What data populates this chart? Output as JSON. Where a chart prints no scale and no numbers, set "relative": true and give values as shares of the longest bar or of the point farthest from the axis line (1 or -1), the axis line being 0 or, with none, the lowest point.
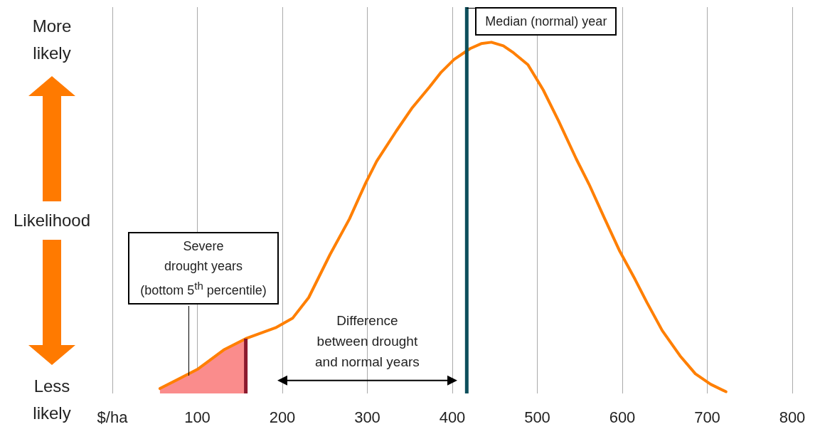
{
  "chart_data": {
    "type": "line",
    "relative": true,
    "ylabel": "Likelihood",
    "xlim": [
      0,
      800
    ],
    "xticks": [
      {
        "value": 0,
        "label": "$/ha"
      },
      100,
      200,
      300,
      400,
      500,
      600,
      700,
      800
    ],
    "grid": "x",
    "tick_labels": "x",
    "marker": "none",
    "annotations": [
      "More likely",
      "Less likely",
      "Severe\ndrought years\n(bottom 5$^{th}$ percentile)",
      {
        "text": "Difference\nbetween drought\nand normal years",
        "x": 300,
        "y": 0.037
      }
    ],
    "ref_lines": [
      {
        "axis": "x",
        "value": 157,
        "color": "#8b1a2e"
      },
      {
        "axis": "x",
        "value": 417,
        "label": "Median (normal) year",
        "color": "#0d4f5c"
      }
    ],
    "series": [
      {
        "type": "area",
        "color": "#fa8c8c",
        "x": [
          56,
          89,
          101,
          131,
          157
        ],
        "values": [
          0.014,
          0.051,
          0.07,
          0.124,
          0.156
        ]
      },
      {
        "color": "#ff7f00",
        "x": [
          56,
          86,
          101,
          131,
          157,
          192,
          212,
          231,
          256,
          279,
          298,
          311,
          334,
          353,
          373,
          387,
          402,
          421,
          434,
          446,
          460,
          472,
          489,
          507,
          525,
          546,
          561,
          579,
          597,
          615,
          629,
          647,
          668,
          686,
          704,
          722
        ],
        "values": [
          0.014,
          0.051,
          0.07,
          0.124,
          0.156,
          0.187,
          0.214,
          0.273,
          0.395,
          0.497,
          0.599,
          0.661,
          0.747,
          0.814,
          0.872,
          0.915,
          0.951,
          0.982,
          0.996,
          1,
          0.99,
          0.97,
          0.936,
          0.864,
          0.776,
          0.667,
          0.595,
          0.499,
          0.405,
          0.325,
          0.259,
          0.179,
          0.107,
          0.056,
          0.026,
          0.005
        ]
      },
      {
        "color": "#000000",
        "marker": "triangle",
        "x": [
          200,
          400
        ],
        "values": [
          0.037,
          0.037
        ]
      }
    ]
  }
}
